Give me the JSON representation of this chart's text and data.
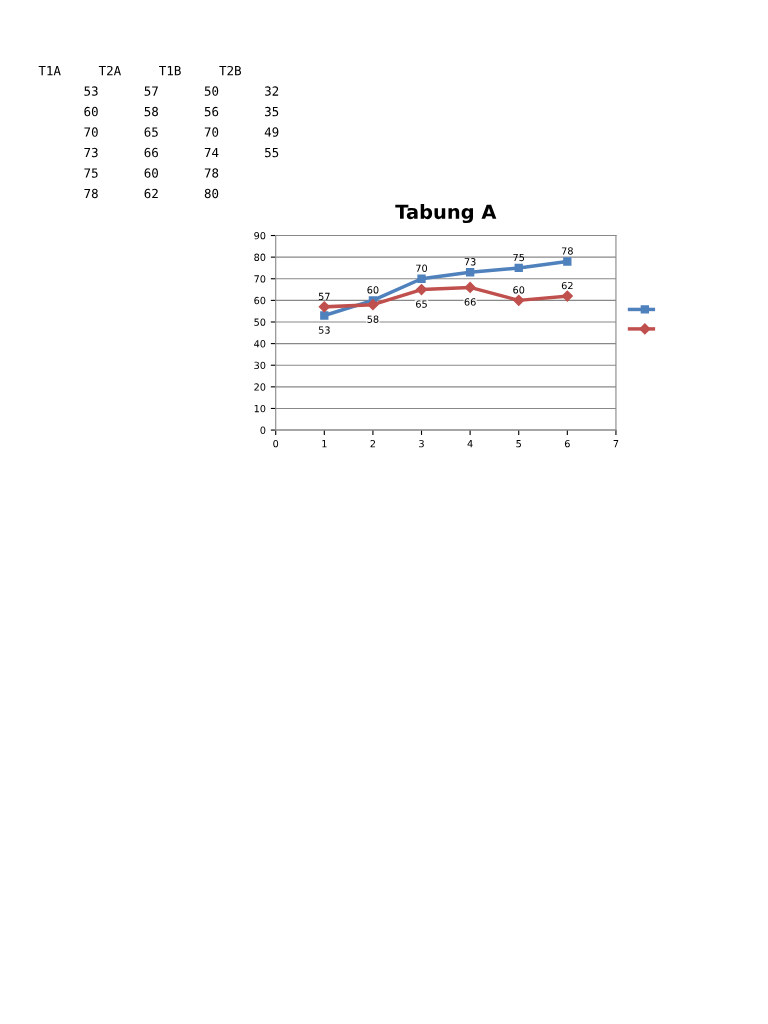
{
  "chart_data": [
    {
      "type": "other",
      "annotations": [
        "T1A T2A T1B T2B",
        "53 57 50 32",
        "60 58 56 35",
        "70 65 70 49",
        "73 66 74 55",
        "75 60 78",
        "78 62 80"
      ]
    },
    {
      "type": "line",
      "title": "Tabung A",
      "x": [
        1,
        2,
        3,
        4,
        5,
        6
      ],
      "series": [
        {
          "color": "#4f81bd",
          "values": [
            53,
            60,
            70,
            73,
            75,
            78
          ],
          "marker": "square"
        },
        {
          "color": "#c0504d",
          "values": [
            57,
            58,
            65,
            66,
            60,
            62
          ],
          "marker": "diamond"
        }
      ],
      "xlim": [
        0,
        7
      ],
      "xticks": [
        0,
        1,
        2,
        3,
        4,
        5,
        6,
        7
      ],
      "ylim": [
        0,
        90
      ],
      "yticks": [
        0,
        10,
        20,
        30,
        40,
        50,
        60,
        70,
        80,
        90
      ],
      "grid": "y",
      "data_labels": true
    }
  ]
}
